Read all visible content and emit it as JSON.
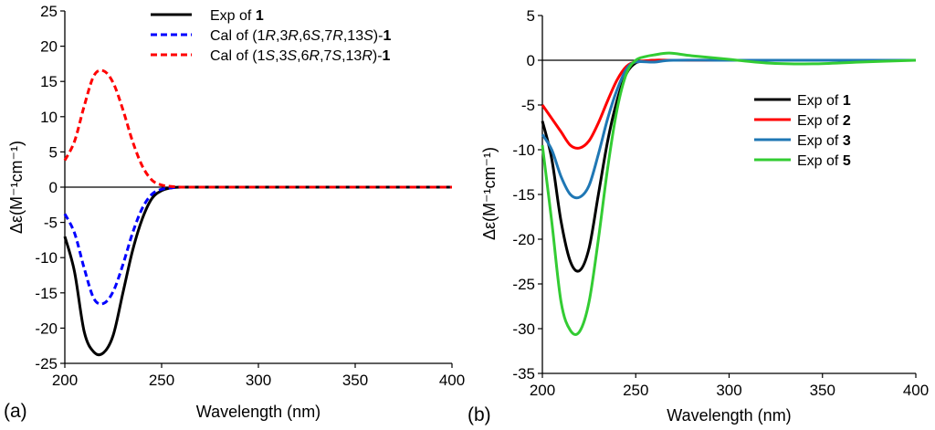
{
  "chart_data": [
    {
      "type": "line",
      "panel_label": "(a)",
      "xlabel": "Wavelength (nm)",
      "ylabel": "Δε(M⁻¹cm⁻¹)",
      "xlim": [
        200,
        400
      ],
      "ylim": [
        -25,
        25
      ],
      "xticks": [
        200,
        250,
        300,
        350,
        400
      ],
      "xtick_labels": [
        "200",
        "250",
        "300",
        "350",
        "400"
      ],
      "yticks": [
        25,
        20,
        15,
        10,
        5,
        0,
        -5,
        -10,
        -15,
        -20,
        -25
      ],
      "ytick_labels": [
        "25",
        "20",
        "15",
        "10",
        "5",
        "0",
        "-5",
        "-10",
        "-15",
        "-20",
        "-25"
      ],
      "legend_position": "top-center",
      "series": [
        {
          "name": "Exp of 1",
          "legend_prefix": "Exp of ",
          "legend_bold": "1",
          "color": "#000000",
          "style": "solid",
          "x": [
            200,
            205,
            210,
            215,
            220,
            225,
            230,
            235,
            240,
            245,
            250,
            255,
            260,
            270,
            300,
            350,
            400
          ],
          "y": [
            -7,
            -12,
            -20.5,
            -23.4,
            -23.5,
            -21,
            -15,
            -9,
            -4.5,
            -1.6,
            -0.5,
            -0.1,
            0,
            0,
            0,
            0,
            0
          ]
        },
        {
          "name": "Cal of (1R,3R,6S,7R,13S)-1",
          "legend_parts": [
            {
              "t": "Cal of (1",
              "it": false,
              "b": false
            },
            {
              "t": "R",
              "it": true,
              "b": false
            },
            {
              "t": ",3",
              "it": false,
              "b": false
            },
            {
              "t": "R",
              "it": true,
              "b": false
            },
            {
              "t": ",6",
              "it": false,
              "b": false
            },
            {
              "t": "S",
              "it": true,
              "b": false
            },
            {
              "t": ",7",
              "it": false,
              "b": false
            },
            {
              "t": "R",
              "it": true,
              "b": false
            },
            {
              "t": ",13",
              "it": false,
              "b": false
            },
            {
              "t": "S",
              "it": true,
              "b": false
            },
            {
              "t": ")-",
              "it": false,
              "b": false
            },
            {
              "t": "1",
              "it": false,
              "b": true
            }
          ],
          "color": "#0000ff",
          "style": "dashed",
          "x": [
            200,
            205,
            210,
            215,
            220,
            225,
            230,
            235,
            240,
            245,
            250,
            255,
            260,
            270,
            300,
            350,
            400
          ],
          "y": [
            -3.8,
            -6.5,
            -11.5,
            -15.8,
            -16.5,
            -14.8,
            -11,
            -6.5,
            -3,
            -1,
            -0.3,
            -0.1,
            0,
            0,
            0,
            0,
            0
          ]
        },
        {
          "name": "Cal of (1S,3S,6R,7S,13R)-1",
          "legend_parts": [
            {
              "t": "Cal of (1",
              "it": false,
              "b": false
            },
            {
              "t": "S",
              "it": true,
              "b": false
            },
            {
              "t": ",3",
              "it": false,
              "b": false
            },
            {
              "t": "S",
              "it": true,
              "b": false
            },
            {
              "t": ",6",
              "it": false,
              "b": false
            },
            {
              "t": "R",
              "it": true,
              "b": false
            },
            {
              "t": ",7",
              "it": false,
              "b": false
            },
            {
              "t": "S",
              "it": true,
              "b": false
            },
            {
              "t": ",13",
              "it": false,
              "b": false
            },
            {
              "t": "R",
              "it": true,
              "b": false
            },
            {
              "t": ")-",
              "it": false,
              "b": false
            },
            {
              "t": "1",
              "it": false,
              "b": true
            }
          ],
          "color": "#ff0000",
          "style": "dashed",
          "x": [
            200,
            205,
            210,
            215,
            220,
            225,
            230,
            235,
            240,
            245,
            250,
            255,
            260,
            270,
            300,
            350,
            400
          ],
          "y": [
            3.8,
            6.5,
            11.5,
            15.8,
            16.5,
            14.8,
            11,
            6.5,
            3,
            1,
            0.3,
            0.1,
            0,
            0,
            0,
            0,
            0
          ]
        }
      ]
    },
    {
      "type": "line",
      "panel_label": "(b)",
      "xlabel": "Wavelength (nm)",
      "ylabel": "Δε(M⁻¹cm⁻¹)",
      "xlim": [
        200,
        400
      ],
      "ylim": [
        -35,
        5
      ],
      "xticks": [
        200,
        250,
        300,
        350,
        400
      ],
      "xtick_labels": [
        "200",
        "250",
        "300",
        "350",
        "400"
      ],
      "yticks": [
        5,
        0,
        -5,
        -10,
        -15,
        -20,
        -25,
        -30,
        -35
      ],
      "ytick_labels": [
        "5",
        "0",
        "-5",
        "-10",
        "-15",
        "-20",
        "-25",
        "-30",
        "-35"
      ],
      "legend_position": "right",
      "series": [
        {
          "name": "Exp of 1",
          "legend_prefix": "Exp of ",
          "legend_bold": "1",
          "color": "#000000",
          "style": "solid",
          "x": [
            200,
            205,
            210,
            215,
            220,
            225,
            230,
            235,
            240,
            245,
            250,
            255,
            260,
            270,
            300,
            350,
            400
          ],
          "y": [
            -6.8,
            -11,
            -18,
            -22.5,
            -23.5,
            -21,
            -15,
            -9,
            -4.5,
            -1.5,
            -0.3,
            -0.1,
            0,
            0,
            0,
            0,
            0
          ]
        },
        {
          "name": "Exp of 2",
          "legend_prefix": "Exp of ",
          "legend_bold": "2",
          "color": "#ff0000",
          "style": "solid",
          "x": [
            200,
            205,
            210,
            215,
            220,
            225,
            230,
            235,
            240,
            245,
            250,
            260,
            270,
            300,
            350,
            400
          ],
          "y": [
            -5,
            -6.5,
            -8,
            -9.5,
            -9.8,
            -9,
            -7,
            -4.5,
            -2.2,
            -0.7,
            -0.2,
            0,
            0,
            0,
            0,
            0
          ]
        },
        {
          "name": "Exp of 3",
          "legend_prefix": "Exp of ",
          "legend_bold": "3",
          "color": "#1f77b4",
          "style": "solid",
          "x": [
            200,
            205,
            210,
            215,
            220,
            225,
            230,
            235,
            240,
            245,
            250,
            260,
            270,
            300,
            350,
            400
          ],
          "y": [
            -8.3,
            -10,
            -13,
            -15,
            -15.3,
            -14,
            -10.5,
            -6.5,
            -3.3,
            -1,
            -0.2,
            -0.2,
            0,
            0,
            0,
            0
          ]
        },
        {
          "name": "Exp of 5",
          "legend_prefix": "Exp of ",
          "legend_bold": "5",
          "color": "#33cc33",
          "style": "solid",
          "x": [
            200,
            205,
            210,
            215,
            220,
            225,
            230,
            235,
            240,
            245,
            250,
            255,
            260,
            268,
            280,
            300,
            320,
            345,
            370,
            400
          ],
          "y": [
            -9.5,
            -18,
            -27,
            -30.2,
            -30.3,
            -27,
            -20,
            -12,
            -5.5,
            -1.5,
            0,
            0.4,
            0.6,
            0.8,
            0.5,
            0.1,
            -0.3,
            -0.4,
            -0.2,
            0
          ]
        }
      ]
    }
  ]
}
